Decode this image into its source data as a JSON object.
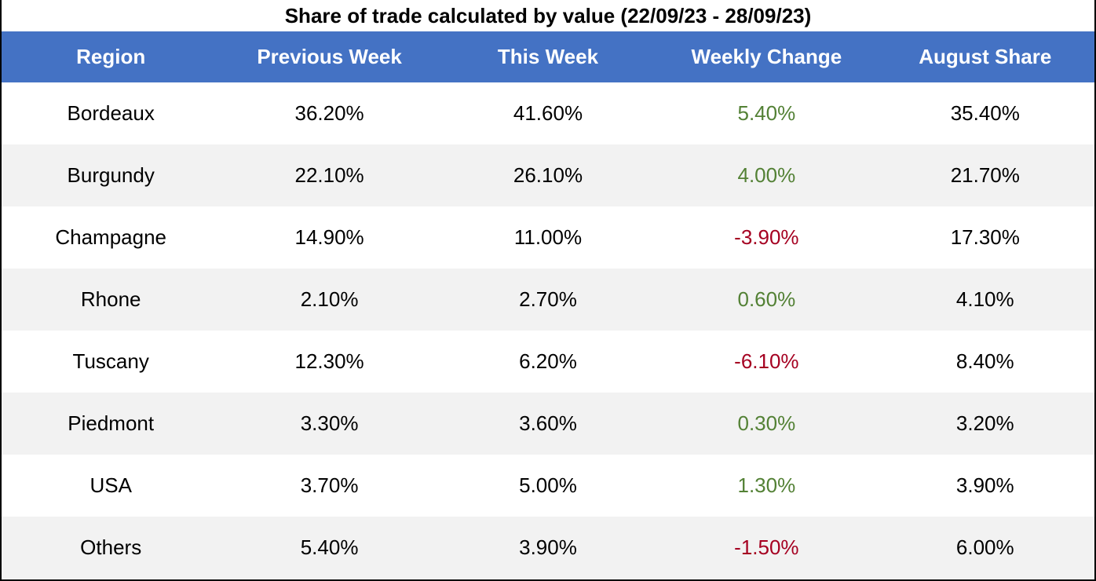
{
  "chart_data": {
    "type": "table",
    "title": "Share of trade calculated by value (22/09/23 - 28/09/23)",
    "columns": [
      "Region",
      "Previous Week",
      "This Week",
      "Weekly Change",
      "August Share"
    ],
    "rows": [
      {
        "region": "Bordeaux",
        "previous_week": "36.20%",
        "this_week": "41.60%",
        "weekly_change": "5.40%",
        "august_share": "35.40%"
      },
      {
        "region": "Burgundy",
        "previous_week": "22.10%",
        "this_week": "26.10%",
        "weekly_change": "4.00%",
        "august_share": "21.70%"
      },
      {
        "region": "Champagne",
        "previous_week": "14.90%",
        "this_week": "11.00%",
        "weekly_change": "-3.90%",
        "august_share": "17.30%"
      },
      {
        "region": "Rhone",
        "previous_week": "2.10%",
        "this_week": "2.70%",
        "weekly_change": "0.60%",
        "august_share": "4.10%"
      },
      {
        "region": "Tuscany",
        "previous_week": "12.30%",
        "this_week": "6.20%",
        "weekly_change": "-6.10%",
        "august_share": "8.40%"
      },
      {
        "region": "Piedmont",
        "previous_week": "3.30%",
        "this_week": "3.60%",
        "weekly_change": "0.30%",
        "august_share": "3.20%"
      },
      {
        "region": "USA",
        "previous_week": "3.70%",
        "this_week": "5.00%",
        "weekly_change": "1.30%",
        "august_share": "3.90%"
      },
      {
        "region": "Others",
        "previous_week": "5.40%",
        "this_week": "3.90%",
        "weekly_change": "-1.50%",
        "august_share": "6.00%"
      }
    ]
  },
  "colors": {
    "header_background": "#4472c4",
    "header_text": "#ffffff",
    "alt_row_background": "#f2f2f2",
    "positive_change": "#538135",
    "negative_change": "#a50021"
  }
}
